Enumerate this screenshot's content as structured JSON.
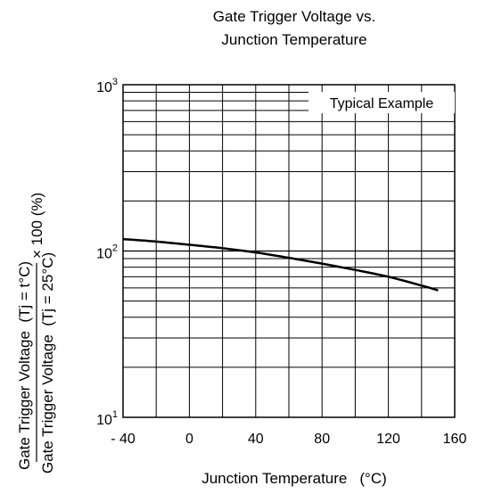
{
  "chart_data": {
    "type": "line",
    "title_lines": [
      "Gate Trigger Voltage vs.",
      "Junction Temperature"
    ],
    "xlabel": "Junction Temperature",
    "xunit": "(°C)",
    "ylabel": {
      "numerator": "Gate Trigger Voltage  (Tj = t°C)",
      "denominator": "Gate Trigger Voltage  (Tj = 25°C)",
      "suffix": "× 100 (%)"
    },
    "xlim": [
      -40,
      160
    ],
    "ylim": [
      10,
      1000
    ],
    "yscale": "log",
    "grid": true,
    "x_ticks": [
      {
        "value": -40,
        "label": "- 40"
      },
      {
        "value": 0,
        "label": "0"
      },
      {
        "value": 40,
        "label": "40"
      },
      {
        "value": 80,
        "label": "80"
      },
      {
        "value": 120,
        "label": "120"
      },
      {
        "value": 160,
        "label": "160"
      }
    ],
    "y_ticks": [
      {
        "value": 10,
        "base": "10",
        "exp": "1"
      },
      {
        "value": 100,
        "base": "10",
        "exp": "2"
      },
      {
        "value": 1000,
        "base": "10",
        "exp": "3"
      }
    ],
    "annotation": "Typical Example",
    "series": [
      {
        "x": [
          -40,
          -20,
          0,
          20,
          40,
          60,
          80,
          100,
          120,
          140,
          150
        ],
        "y": [
          118,
          114,
          109,
          104,
          98,
          91,
          84,
          77,
          70,
          62,
          58
        ]
      }
    ]
  }
}
